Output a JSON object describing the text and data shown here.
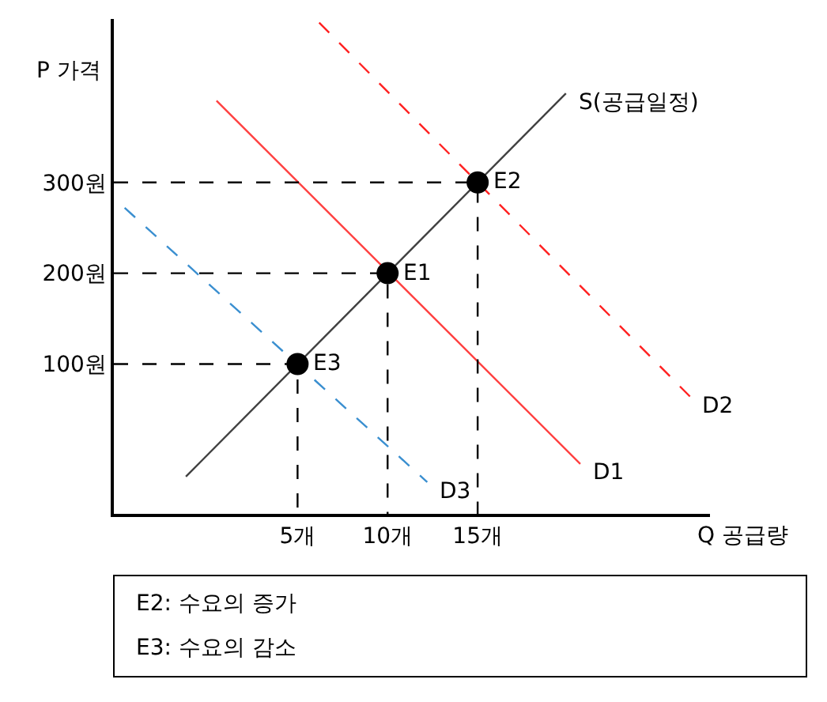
{
  "chart_data": {
    "type": "line",
    "xlabel": "Q 공급량",
    "ylabel": "P 가격",
    "xlim": [
      -5.2,
      27.9
    ],
    "ylim": [
      -65,
      480
    ],
    "xticks": [
      {
        "value": 5,
        "label": "5개"
      },
      {
        "value": 10,
        "label": "10개"
      },
      {
        "value": 15,
        "label": "15개"
      }
    ],
    "yticks": [
      {
        "value": 100,
        "label": "100원"
      },
      {
        "value": 200,
        "label": "200원"
      },
      {
        "value": 300,
        "label": "300원"
      }
    ],
    "tick_labels": "xy",
    "series": [
      {
        "name": "S(공급일정)",
        "color": "#404040",
        "x": [
          -1.2,
          19.9
        ],
        "values": [
          -24,
          398
        ],
        "line_style": "solid"
      },
      {
        "name": "D1",
        "color": "#ff4040",
        "x": [
          0.5,
          20.7
        ],
        "values": [
          390,
          -10
        ],
        "line_style": "solid"
      },
      {
        "name": "D2",
        "color": "#ff2020",
        "x": [
          6.2,
          26.8
        ],
        "values": [
          476,
          64
        ],
        "line_style": "dashed"
      },
      {
        "name": "D3",
        "color": "#3a8fd0",
        "x": [
          -4.6,
          12.2
        ],
        "values": [
          272,
          -30
        ],
        "line_style": "dashed"
      },
      {
        "color": "#000000",
        "x": [
          -5.2,
          5,
          5
        ],
        "values": [
          100,
          100,
          -65
        ],
        "line_style": "dashed"
      },
      {
        "color": "#000000",
        "x": [
          -5.2,
          10,
          10
        ],
        "values": [
          200,
          200,
          -65
        ],
        "line_style": "dashed"
      },
      {
        "color": "#000000",
        "x": [
          -5.2,
          15,
          15
        ],
        "values": [
          300,
          300,
          -65
        ],
        "line_style": "dashed"
      },
      {
        "type": "scatter",
        "color": "#000000",
        "marker": "circle",
        "x": [
          5,
          10,
          15
        ],
        "values": [
          100,
          200,
          300
        ]
      }
    ],
    "annotations": [
      {
        "text": "E3",
        "x": 5,
        "y": 100
      },
      {
        "text": "E1",
        "x": 10,
        "y": 200
      },
      {
        "text": "E2",
        "x": 15,
        "y": 300
      },
      "E2: 수요의 증가",
      "E3: 수요의 감소"
    ]
  }
}
